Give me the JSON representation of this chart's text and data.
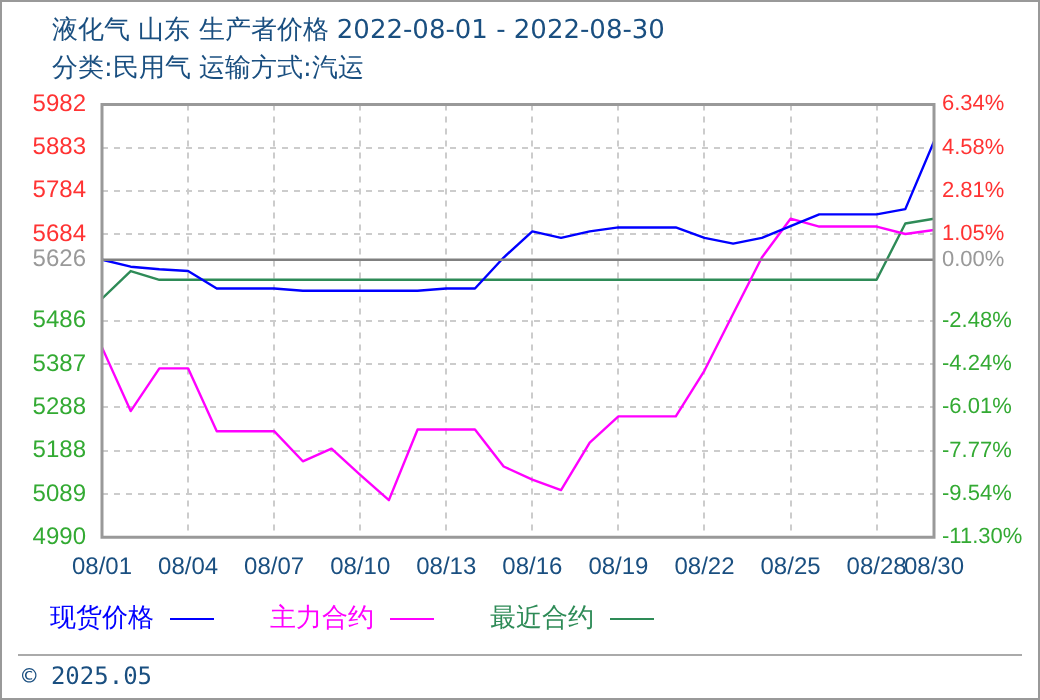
{
  "chart_data": {
    "type": "line",
    "title": "液化气 山东 生产者价格 2022-08-01 - 2022-08-30",
    "subtitle": "分类:民用气 运输方式:汽运",
    "x": [
      "2022-08-01",
      "2022-08-02",
      "2022-08-03",
      "2022-08-04",
      "2022-08-05",
      "2022-08-06",
      "2022-08-07",
      "2022-08-08",
      "2022-08-09",
      "2022-08-10",
      "2022-08-11",
      "2022-08-12",
      "2022-08-13",
      "2022-08-14",
      "2022-08-15",
      "2022-08-16",
      "2022-08-17",
      "2022-08-18",
      "2022-08-19",
      "2022-08-20",
      "2022-08-21",
      "2022-08-22",
      "2022-08-23",
      "2022-08-24",
      "2022-08-25",
      "2022-08-26",
      "2022-08-27",
      "2022-08-28",
      "2022-08-29",
      "2022-08-30"
    ],
    "series": [
      {
        "name": "现货价格",
        "color": "#0000ff",
        "values": [
          5626,
          5610,
          5604,
          5600,
          5560,
          5560,
          5560,
          5555,
          5555,
          5555,
          5555,
          5555,
          5560,
          5560,
          5631,
          5691,
          5676,
          5691,
          5700,
          5700,
          5700,
          5676,
          5663,
          5676,
          5703,
          5730,
          5730,
          5730,
          5742,
          5897
        ]
      },
      {
        "name": "主力合约",
        "color": "#ff00ff",
        "values": [
          5425,
          5279,
          5377,
          5377,
          5233,
          5233,
          5233,
          5164,
          5193,
          5133,
          5075,
          5237,
          5237,
          5237,
          5152,
          5122,
          5098,
          5207,
          5267,
          5267,
          5267,
          5372,
          5502,
          5631,
          5720,
          5702,
          5702,
          5702,
          5685,
          5694
        ]
      },
      {
        "name": "最近合约",
        "color": "#2e8b57",
        "values": [
          5537,
          5600,
          5580,
          5580,
          5580,
          5580,
          5580,
          5580,
          5580,
          5580,
          5580,
          5580,
          5580,
          5580,
          5580,
          5580,
          5580,
          5580,
          5580,
          5580,
          5580,
          5580,
          5580,
          5580,
          5580,
          5580,
          5580,
          5580,
          5709,
          5720
        ]
      }
    ],
    "xlim": [
      "2022-08-01",
      "2022-08-30"
    ],
    "xticks": [
      {
        "value": "2022-08-01",
        "label": "08/01"
      },
      {
        "value": "2022-08-04",
        "label": "08/04"
      },
      {
        "value": "2022-08-07",
        "label": "08/07"
      },
      {
        "value": "2022-08-10",
        "label": "08/10"
      },
      {
        "value": "2022-08-13",
        "label": "08/13"
      },
      {
        "value": "2022-08-16",
        "label": "08/16"
      },
      {
        "value": "2022-08-19",
        "label": "08/19"
      },
      {
        "value": "2022-08-22",
        "label": "08/22"
      },
      {
        "value": "2022-08-25",
        "label": "08/25"
      },
      {
        "value": "2022-08-28",
        "label": "08/28"
      },
      {
        "value": "2022-08-30",
        "label": "08/30"
      }
    ],
    "ylim": [
      4990,
      5982
    ],
    "yticks": [
      4990,
      5089,
      5188,
      5288,
      5387,
      5486,
      5626,
      5684,
      5784,
      5883,
      5982
    ],
    "y2lim": [
      -11.3,
      6.34
    ],
    "y2ticks": [
      {
        "value": -11.3,
        "label": "-11.30%"
      },
      {
        "value": -9.54,
        "label": "-9.54%"
      },
      {
        "value": -7.77,
        "label": "-7.77%"
      },
      {
        "value": -6.01,
        "label": "-6.01%"
      },
      {
        "value": -4.24,
        "label": "-4.24%"
      },
      {
        "value": -2.48,
        "label": "-2.48%"
      },
      {
        "value": 0,
        "label": "0.00%"
      },
      {
        "value": 1.05,
        "label": "1.05%"
      },
      {
        "value": 2.81,
        "label": "2.81%"
      },
      {
        "value": 4.58,
        "label": "4.58%"
      },
      {
        "value": 6.34,
        "label": "6.34%"
      }
    ],
    "ref_lines": [
      {
        "axis": "y",
        "value": 5626,
        "color": "#808080"
      }
    ],
    "grid": true,
    "legend": "bottom",
    "line_style": "solid",
    "annotations": [
      "© 2025.05"
    ]
  }
}
